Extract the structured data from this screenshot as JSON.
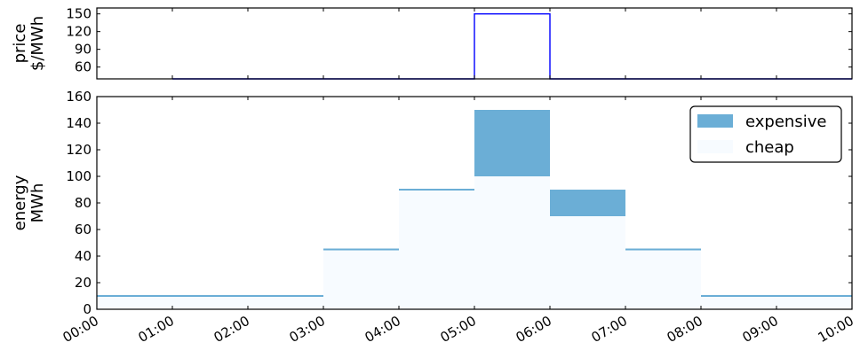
{
  "chart_data": [
    {
      "type": "line",
      "step": true,
      "ylabel_lines": [
        "price",
        "$/MWh"
      ],
      "xlim": [
        0,
        10
      ],
      "ylim": [
        40,
        160
      ],
      "y_ticks": [
        60,
        90,
        120,
        150
      ],
      "series": [
        {
          "color": "#0000ff",
          "x": [
            1,
            2,
            3,
            4,
            5,
            6,
            7,
            8,
            9,
            10
          ],
          "y": [
            40,
            40,
            40,
            40,
            150,
            40,
            40,
            40,
            40,
            40
          ]
        }
      ],
      "grid": false
    },
    {
      "type": "area",
      "step": true,
      "ylabel_lines": [
        "energy",
        "MWh"
      ],
      "xlim": [
        0,
        10
      ],
      "ylim": [
        0,
        160
      ],
      "y_ticks": [
        0,
        20,
        40,
        60,
        80,
        100,
        120,
        140,
        160
      ],
      "x_tick_labels": [
        "00:00",
        "01:00",
        "02:00",
        "03:00",
        "04:00",
        "05:00",
        "06:00",
        "07:00",
        "08:00",
        "09:00",
        "10:00"
      ],
      "x_ticks": [
        0,
        1,
        2,
        3,
        4,
        5,
        6,
        7,
        8,
        9,
        10
      ],
      "hours": [
        0,
        1,
        2,
        3,
        4,
        5,
        6,
        7,
        8,
        9
      ],
      "series": [
        {
          "name": "cheap",
          "color": "#f7fbff",
          "values": [
            10,
            10,
            10,
            45,
            90,
            100,
            70,
            45,
            10,
            10
          ]
        },
        {
          "name": "expensive",
          "color": "#6baed6",
          "values": [
            0,
            0,
            0,
            0,
            0,
            50,
            20,
            0,
            0,
            0
          ]
        }
      ],
      "legend": {
        "location": "top-right",
        "entries": [
          "expensive",
          "cheap"
        ]
      },
      "grid": false
    }
  ]
}
